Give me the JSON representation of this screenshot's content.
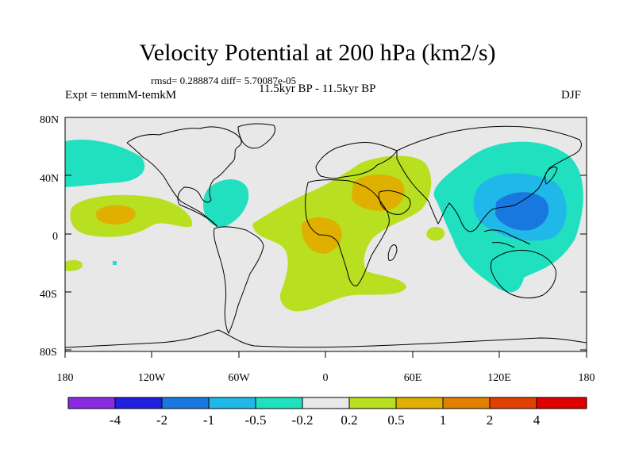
{
  "title": "Velocity Potential at 200 hPa (km2/s)",
  "stats": "rmsd= 0.288874 diff= 5.70087e-05",
  "experiment": "Expt = temmM-temkM",
  "period": "11.5kyr BP - 11.5kyr BP",
  "season": "DJF",
  "axes": {
    "lat_ticks": [
      "80N",
      "40N",
      "0",
      "40S",
      "80S"
    ],
    "lon_ticks": [
      "180",
      "120W",
      "60W",
      "0",
      "60E",
      "120E",
      "180"
    ]
  },
  "colorbar": {
    "colors": [
      "#8a2be2",
      "#2020e0",
      "#1878e0",
      "#20b8e8",
      "#20e0c0",
      "#e8e8e8",
      "#b8e020",
      "#e0b000",
      "#e08000",
      "#e04000",
      "#e00000"
    ],
    "labels": [
      "-4",
      "-2",
      "-1",
      "-0.5",
      "-0.2",
      "0.2",
      "0.5",
      "1",
      "2",
      "4"
    ]
  },
  "colors": {
    "background": "#e8e8e8",
    "coast": "#000000"
  }
}
